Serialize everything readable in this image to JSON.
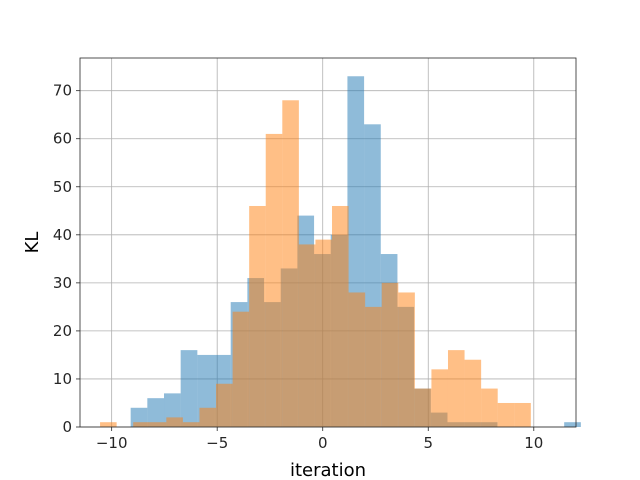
{
  "chart_data": {
    "type": "bar",
    "title": "",
    "xlabel": "iteration",
    "ylabel": "KL",
    "xlim": [
      -11.5,
      12.0
    ],
    "ylim": [
      0,
      76.8
    ],
    "grid": true,
    "xticks": [
      -10,
      -5,
      0,
      5,
      10
    ],
    "xtick_labels": [
      "−10",
      "−5",
      "0",
      "5",
      "10"
    ],
    "yticks": [
      0,
      10,
      20,
      30,
      40,
      50,
      60,
      70
    ],
    "ytick_labels": [
      "0",
      "10",
      "20",
      "30",
      "40",
      "50",
      "60",
      "70"
    ],
    "series": [
      {
        "color": "#1f77b4",
        "alpha": 0.5,
        "bin_start": -9.1,
        "bin_width": 0.79,
        "counts": [
          4,
          6,
          7,
          16,
          15,
          15,
          26,
          31,
          26,
          33,
          44,
          36,
          40,
          73,
          63,
          36,
          25,
          8,
          3,
          1,
          1,
          1,
          0,
          0,
          0,
          0,
          1
        ]
      },
      {
        "color": "#ff7f0e",
        "alpha": 0.5,
        "bin_start": -10.55,
        "bin_width": 0.785,
        "counts": [
          1,
          0,
          1,
          1,
          2,
          1,
          4,
          9,
          24,
          46,
          61,
          68,
          38,
          39,
          46,
          28,
          25,
          30,
          28,
          8,
          12,
          16,
          14,
          8,
          5,
          5
        ]
      }
    ]
  }
}
